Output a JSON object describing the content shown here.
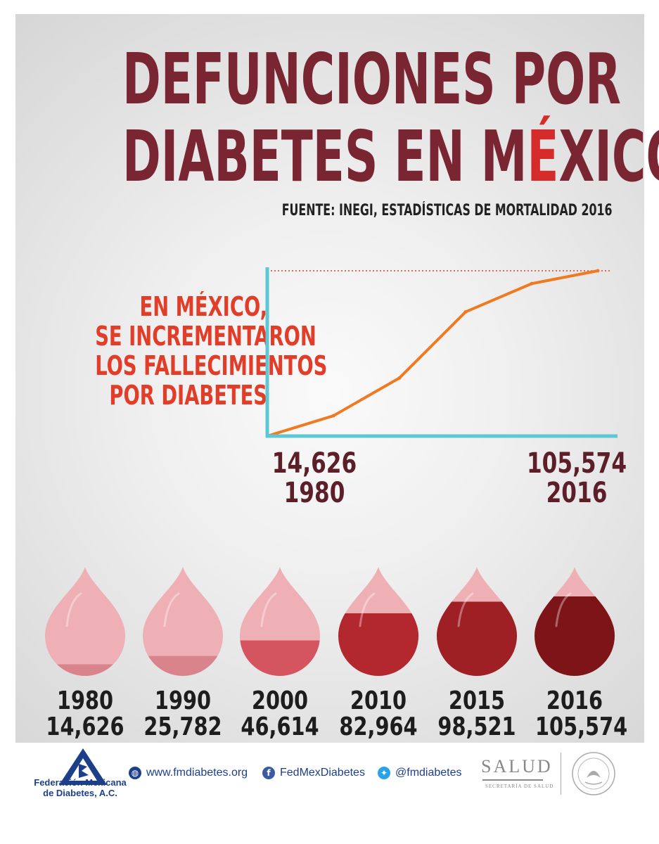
{
  "header": {
    "title_line1": "DEFUNCIONES POR",
    "title_line2_prefix": "DIABETES EN M",
    "title_line2_accent": "É",
    "title_line2_suffix": "XICO",
    "source": "FUENTE: INEGI, ESTADÍSTICAS DE MORTALIDAD 2016"
  },
  "subtitle": [
    "EN MÉXICO,",
    "SE INCREMENTARON",
    "LOS FALLECIMIENTOS",
    "POR DIABETES"
  ],
  "colors": {
    "title": "#7a2632",
    "accent": "#d52b2b",
    "subtitle": "#e23d28",
    "axis": "#5bc8d4",
    "line": "#f07a22",
    "reference_line": "#e23d28",
    "drop_empty": "#eeb0b4",
    "footer_text": "#1d3f8a"
  },
  "chart_data": [
    {
      "type": "line",
      "x": [
        1980,
        1990,
        2000,
        2010,
        2015,
        2016
      ],
      "values": [
        14626,
        25782,
        46614,
        82964,
        98521,
        105574
      ],
      "start_label": {
        "value": "14,626",
        "year": "1980"
      },
      "end_label": {
        "value": "105,574",
        "year": "2016"
      },
      "reference_line": "dotted horizontal at maximum",
      "grid": false
    },
    {
      "type": "bar",
      "style": "blood-drop fill level",
      "categories": [
        "1980",
        "1990",
        "2000",
        "2010",
        "2015",
        "2016"
      ],
      "values": [
        14626,
        25782,
        46614,
        82964,
        98521,
        105574
      ],
      "value_labels": [
        "14,626",
        "25,782",
        "46,614",
        "82,964",
        "98,521",
        "105,574"
      ],
      "fill_colors": [
        "#d9848d",
        "#d9848d",
        "#d4545f",
        "#b3272f",
        "#9e1f24",
        "#7d1518"
      ]
    }
  ],
  "footer": {
    "org_name_line1": "Federación Mexicana",
    "org_name_line2": "de Diabetes, A.C.",
    "website": "www.fmdiabetes.org",
    "facebook": "FedMexDiabetes",
    "twitter": "@fmdiabetes",
    "salud": "SALUD",
    "salud_sub": "SECRETARÍA DE SALUD",
    "icons": [
      "globe-icon",
      "facebook-icon",
      "twitter-icon"
    ]
  }
}
